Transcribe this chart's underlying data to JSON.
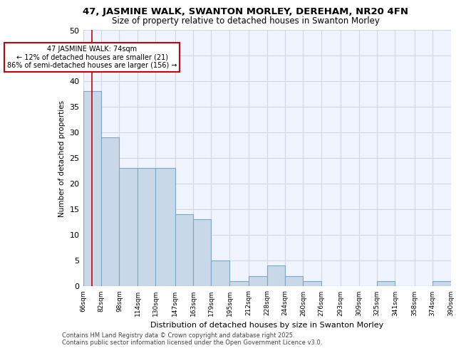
{
  "title1": "47, JASMINE WALK, SWANTON MORLEY, DEREHAM, NR20 4FN",
  "title2": "Size of property relative to detached houses in Swanton Morley",
  "xlabel": "Distribution of detached houses by size in Swanton Morley",
  "ylabel": "Number of detached properties",
  "footer1": "Contains HM Land Registry data © Crown copyright and database right 2025.",
  "footer2": "Contains public sector information licensed under the Open Government Licence v3.0.",
  "bin_labels": [
    "66sqm",
    "82sqm",
    "98sqm",
    "114sqm",
    "130sqm",
    "147sqm",
    "163sqm",
    "179sqm",
    "195sqm",
    "212sqm",
    "228sqm",
    "244sqm",
    "260sqm",
    "276sqm",
    "293sqm",
    "309sqm",
    "325sqm",
    "341sqm",
    "358sqm",
    "374sqm",
    "390sqm"
  ],
  "bar_values": [
    38,
    29,
    23,
    23,
    23,
    14,
    13,
    5,
    1,
    2,
    4,
    2,
    1,
    0,
    0,
    0,
    1,
    0,
    0,
    1,
    0
  ],
  "bar_color": "#c8d8e8",
  "bar_edge_color": "#7ba7c8",
  "grid_color": "#d0d8e8",
  "background_color": "#f0f4ff",
  "annotation_text": "47 JASMINE WALK: 74sqm\n← 12% of detached houses are smaller (21)\n86% of semi-detached houses are larger (156) →",
  "annotation_box_color": "#ffffff",
  "annotation_box_edge": "#cc0000",
  "vline_x": 74,
  "vline_color": "#cc0000",
  "ylim": [
    0,
    50
  ],
  "yticks": [
    0,
    5,
    10,
    15,
    20,
    25,
    30,
    35,
    40,
    45,
    50
  ],
  "bin_edges": [
    66,
    82,
    98,
    114,
    130,
    147,
    163,
    179,
    195,
    212,
    228,
    244,
    260,
    276,
    293,
    309,
    325,
    341,
    358,
    374,
    390
  ]
}
